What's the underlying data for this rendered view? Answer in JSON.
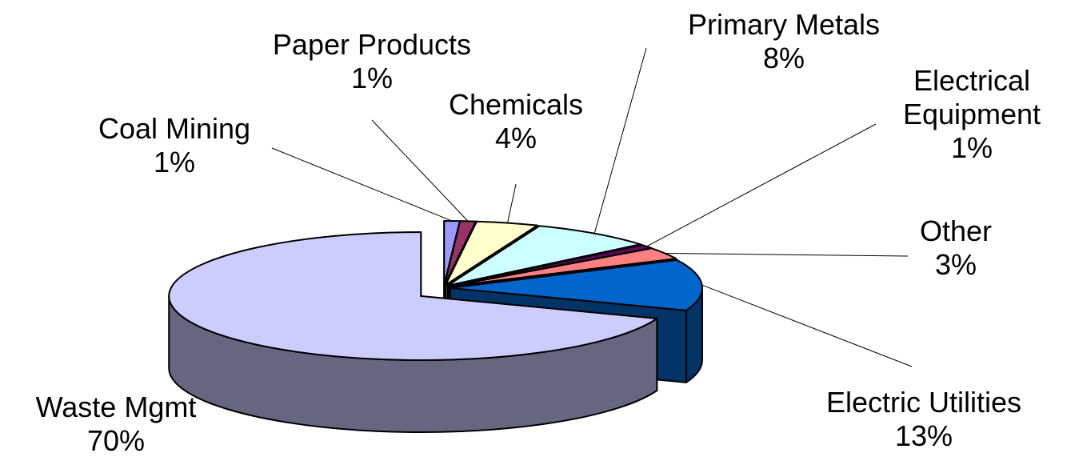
{
  "chart_data": {
    "type": "pie3d",
    "categories": [
      "Coal Mining",
      "Paper Products",
      "Chemicals",
      "Primary Metals",
      "Electrical Equipment",
      "Other",
      "Electric Utilities",
      "Waste Mgmt"
    ],
    "values": [
      1,
      1,
      4,
      8,
      1,
      3,
      13,
      70
    ],
    "value_labels": [
      "1%",
      "1%",
      "4%",
      "8%",
      "1%",
      "3%",
      "13%",
      "70%"
    ],
    "colors": [
      "#9999ff",
      "#993366",
      "#ffffcc",
      "#ccffff",
      "#660066",
      "#ff8080",
      "#0066cc",
      "#ccccff"
    ]
  }
}
